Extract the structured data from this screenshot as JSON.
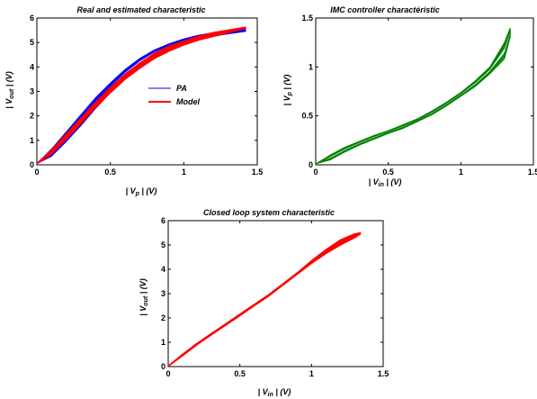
{
  "chart_data": [
    {
      "type": "line",
      "title": "Real and estimated characteristic",
      "xlabel": "| V_p | (V)",
      "ylabel": "| V_out | (V)",
      "xlim": [
        0,
        1.5
      ],
      "ylim": [
        0,
        6
      ],
      "xticks": [
        {
          "v": 0,
          "t": "0"
        },
        {
          "v": 0.5,
          "t": "0.5"
        },
        {
          "v": 1,
          "t": "1"
        },
        {
          "v": 1.5,
          "t": "1.5"
        }
      ],
      "yticks": [
        {
          "v": 0,
          "t": "0"
        },
        {
          "v": 1,
          "t": "1"
        },
        {
          "v": 2,
          "t": "2"
        },
        {
          "v": 3,
          "t": "3"
        },
        {
          "v": 4,
          "t": "4"
        },
        {
          "v": 5,
          "t": "5"
        },
        {
          "v": 6,
          "t": "6"
        }
      ],
      "legend_position": "center-right",
      "series": [
        {
          "name": "PA",
          "color": "#0000ff",
          "style": "hysteresis-band",
          "upper": [
            [
              0,
              0.05
            ],
            [
              0.1,
              0.65
            ],
            [
              0.2,
              1.35
            ],
            [
              0.3,
              2.05
            ],
            [
              0.4,
              2.75
            ],
            [
              0.5,
              3.35
            ],
            [
              0.6,
              3.9
            ],
            [
              0.7,
              4.35
            ],
            [
              0.8,
              4.7
            ],
            [
              0.9,
              4.95
            ],
            [
              1.0,
              5.15
            ],
            [
              1.1,
              5.3
            ],
            [
              1.2,
              5.4
            ],
            [
              1.3,
              5.45
            ],
            [
              1.42,
              5.55
            ]
          ],
          "lower": [
            [
              0,
              0.05
            ],
            [
              0.1,
              0.35
            ],
            [
              0.2,
              0.95
            ],
            [
              0.3,
              1.6
            ],
            [
              0.4,
              2.3
            ],
            [
              0.5,
              2.95
            ],
            [
              0.6,
              3.55
            ],
            [
              0.7,
              4.05
            ],
            [
              0.8,
              4.45
            ],
            [
              0.9,
              4.75
            ],
            [
              1.0,
              4.95
            ],
            [
              1.1,
              5.1
            ],
            [
              1.2,
              5.25
            ],
            [
              1.3,
              5.35
            ],
            [
              1.42,
              5.45
            ]
          ]
        },
        {
          "name": "Model",
          "color": "#ff0000",
          "style": "thick-line",
          "upper": [
            [
              0,
              0.05
            ],
            [
              0.1,
              0.6
            ],
            [
              0.2,
              1.25
            ],
            [
              0.3,
              1.9
            ],
            [
              0.4,
              2.55
            ],
            [
              0.5,
              3.15
            ],
            [
              0.6,
              3.7
            ],
            [
              0.7,
              4.15
            ],
            [
              0.8,
              4.55
            ],
            [
              0.9,
              4.85
            ],
            [
              1.0,
              5.05
            ],
            [
              1.1,
              5.25
            ],
            [
              1.2,
              5.4
            ],
            [
              1.3,
              5.5
            ],
            [
              1.42,
              5.62
            ]
          ],
          "lower": [
            [
              0,
              0.05
            ],
            [
              0.1,
              0.45
            ],
            [
              0.2,
              1.05
            ],
            [
              0.3,
              1.7
            ],
            [
              0.4,
              2.35
            ],
            [
              0.5,
              2.95
            ],
            [
              0.6,
              3.5
            ],
            [
              0.7,
              3.95
            ],
            [
              0.8,
              4.35
            ],
            [
              0.9,
              4.65
            ],
            [
              1.0,
              4.9
            ],
            [
              1.1,
              5.1
            ],
            [
              1.2,
              5.25
            ],
            [
              1.3,
              5.4
            ],
            [
              1.42,
              5.58
            ]
          ]
        }
      ]
    },
    {
      "type": "line",
      "title": "IMC controller charactéristic",
      "xlabel": "| V_in | (V)",
      "ylabel": "| V_p | (V)",
      "xlim": [
        0,
        1.5
      ],
      "ylim": [
        0,
        1.5
      ],
      "xticks": [
        {
          "v": 0,
          "t": "0"
        },
        {
          "v": 0.5,
          "t": "0.5"
        },
        {
          "v": 1,
          "t": "1"
        },
        {
          "v": 1.5,
          "t": "1.5"
        }
      ],
      "yticks": [
        {
          "v": 0,
          "t": "0"
        },
        {
          "v": 0.5,
          "t": "0.5"
        },
        {
          "v": 1,
          "t": "1"
        },
        {
          "v": 1.5,
          "t": "1.5"
        }
      ],
      "series": [
        {
          "color": "#008000",
          "style": "hysteresis-band",
          "upper": [
            [
              0,
              0.01
            ],
            [
              0.1,
              0.1
            ],
            [
              0.2,
              0.18
            ],
            [
              0.3,
              0.24
            ],
            [
              0.4,
              0.3
            ],
            [
              0.5,
              0.35
            ],
            [
              0.6,
              0.41
            ],
            [
              0.7,
              0.47
            ],
            [
              0.8,
              0.55
            ],
            [
              0.9,
              0.64
            ],
            [
              1.0,
              0.74
            ],
            [
              1.1,
              0.86
            ],
            [
              1.2,
              1.0
            ],
            [
              1.3,
              1.25
            ],
            [
              1.34,
              1.4
            ]
          ],
          "lower": [
            [
              0,
              0.01
            ],
            [
              0.1,
              0.05
            ],
            [
              0.2,
              0.13
            ],
            [
              0.3,
              0.2
            ],
            [
              0.4,
              0.26
            ],
            [
              0.5,
              0.32
            ],
            [
              0.6,
              0.37
            ],
            [
              0.7,
              0.44
            ],
            [
              0.8,
              0.51
            ],
            [
              0.9,
              0.6
            ],
            [
              1.0,
              0.7
            ],
            [
              1.1,
              0.8
            ],
            [
              1.2,
              0.93
            ],
            [
              1.3,
              1.08
            ],
            [
              1.34,
              1.3
            ]
          ]
        }
      ]
    },
    {
      "type": "line",
      "title": "Closed loop system characteristic",
      "xlabel": "| V_in | (V)",
      "ylabel": "| V_out | (V)",
      "xlim": [
        0,
        1.5
      ],
      "ylim": [
        0,
        6
      ],
      "xticks": [
        {
          "v": 0,
          "t": "0"
        },
        {
          "v": 0.5,
          "t": "0.5"
        },
        {
          "v": 1,
          "t": "1"
        },
        {
          "v": 1.5,
          "t": "1.5"
        }
      ],
      "yticks": [
        {
          "v": 0,
          "t": "0"
        },
        {
          "v": 1,
          "t": "1"
        },
        {
          "v": 2,
          "t": "2"
        },
        {
          "v": 3,
          "t": "3"
        },
        {
          "v": 4,
          "t": "4"
        },
        {
          "v": 5,
          "t": "5"
        },
        {
          "v": 6,
          "t": "6"
        }
      ],
      "series": [
        {
          "color": "#ff0000",
          "style": "thick-line",
          "upper": [
            [
              0,
              0.02
            ],
            [
              0.1,
              0.5
            ],
            [
              0.2,
              0.95
            ],
            [
              0.3,
              1.35
            ],
            [
              0.4,
              1.75
            ],
            [
              0.5,
              2.15
            ],
            [
              0.6,
              2.55
            ],
            [
              0.7,
              2.95
            ],
            [
              0.8,
              3.4
            ],
            [
              0.9,
              3.85
            ],
            [
              1.0,
              4.35
            ],
            [
              1.1,
              4.8
            ],
            [
              1.2,
              5.2
            ],
            [
              1.3,
              5.45
            ],
            [
              1.34,
              5.5
            ]
          ],
          "lower": [
            [
              0,
              0.02
            ],
            [
              0.1,
              0.45
            ],
            [
              0.2,
              0.9
            ],
            [
              0.3,
              1.3
            ],
            [
              0.4,
              1.7
            ],
            [
              0.5,
              2.1
            ],
            [
              0.6,
              2.5
            ],
            [
              0.7,
              2.9
            ],
            [
              0.8,
              3.35
            ],
            [
              0.9,
              3.8
            ],
            [
              1.0,
              4.25
            ],
            [
              1.1,
              4.65
            ],
            [
              1.2,
              5.0
            ],
            [
              1.3,
              5.3
            ],
            [
              1.34,
              5.45
            ]
          ]
        }
      ]
    }
  ]
}
